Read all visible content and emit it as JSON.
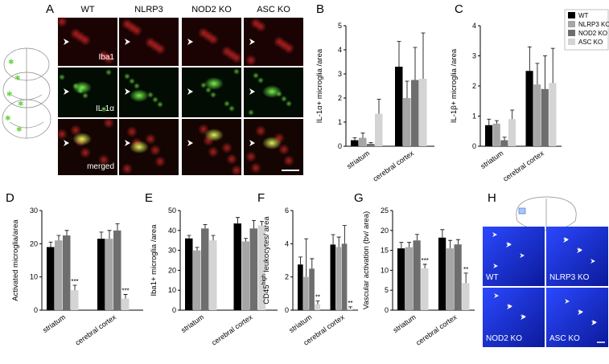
{
  "panel_a": {
    "label": "A",
    "columns": [
      "WT",
      "NLRP3",
      "NOD2 KO",
      "ASC KO"
    ],
    "rows": [
      "Iba1",
      "IL-1α",
      "merged"
    ]
  },
  "legend": {
    "items": [
      {
        "name": "WT",
        "color": "#000000"
      },
      {
        "name": "NLRP3 KO",
        "color": "#a6a6a6"
      },
      {
        "name": "NOD2 KO",
        "color": "#6e6e6e"
      },
      {
        "name": "ASC KO",
        "color": "#d4d4d4"
      }
    ]
  },
  "chart_data": [
    {
      "type": "bar",
      "label": "B",
      "ylabel": "IL-1α+ microglia /area",
      "categories": [
        "striatum",
        "cerebral cortex"
      ],
      "ylim": [
        0,
        5
      ],
      "yticks": [
        0,
        1,
        2,
        3,
        4,
        5
      ],
      "series": [
        {
          "color": "#000000",
          "values": [
            0.25,
            3.3
          ],
          "errors": [
            0.1,
            1.05
          ]
        },
        {
          "color": "#a6a6a6",
          "values": [
            0.35,
            2.0
          ],
          "errors": [
            0.2,
            0.7
          ]
        },
        {
          "color": "#6e6e6e",
          "values": [
            0.1,
            2.75
          ],
          "errors": [
            0.05,
            1.35
          ]
        },
        {
          "color": "#d4d4d4",
          "values": [
            1.35,
            2.8
          ],
          "errors": [
            0.6,
            1.9
          ]
        }
      ]
    },
    {
      "type": "bar",
      "label": "C",
      "ylabel": "IL-1β+ microglia /area",
      "categories": [
        "striatum",
        "cerebral cortex"
      ],
      "ylim": [
        0,
        4
      ],
      "yticks": [
        0,
        1,
        2,
        3,
        4
      ],
      "series": [
        {
          "color": "#000000",
          "values": [
            0.7,
            2.5
          ],
          "errors": [
            0.2,
            0.8
          ]
        },
        {
          "color": "#a6a6a6",
          "values": [
            0.75,
            2.05
          ],
          "errors": [
            0.1,
            0.7
          ]
        },
        {
          "color": "#6e6e6e",
          "values": [
            0.2,
            1.9
          ],
          "errors": [
            0.1,
            1.1
          ]
        },
        {
          "color": "#d4d4d4",
          "values": [
            0.9,
            2.1
          ],
          "errors": [
            0.3,
            1.15
          ]
        }
      ]
    },
    {
      "type": "bar",
      "label": "D",
      "ylabel": "Activated microglia/area",
      "categories": [
        "striatum",
        "cerebral cortex"
      ],
      "ylim": [
        0,
        30
      ],
      "yticks": [
        0,
        10,
        20,
        30
      ],
      "series": [
        {
          "color": "#000000",
          "values": [
            19,
            21.5
          ],
          "errors": [
            1.5,
            2
          ]
        },
        {
          "color": "#a6a6a6",
          "values": [
            21,
            21.5
          ],
          "errors": [
            1.5,
            2.5
          ]
        },
        {
          "color": "#6e6e6e",
          "values": [
            22.5,
            24
          ],
          "errors": [
            1.5,
            2
          ]
        },
        {
          "color": "#d4d4d4",
          "values": [
            6,
            3.5
          ],
          "errors": [
            1.5,
            1.2
          ],
          "value_annotations": [
            "***",
            "***"
          ]
        }
      ]
    },
    {
      "type": "bar",
      "label": "E",
      "ylabel": "Iba1+ microglia /area",
      "categories": [
        "striatum",
        "cerebral cortex"
      ],
      "ylim": [
        0,
        50
      ],
      "yticks": [
        0,
        10,
        20,
        30,
        40,
        50
      ],
      "series": [
        {
          "color": "#000000",
          "values": [
            36,
            43.5
          ],
          "errors": [
            1.5,
            3
          ]
        },
        {
          "color": "#a6a6a6",
          "values": [
            30,
            34.5
          ],
          "errors": [
            1.5,
            1.5
          ]
        },
        {
          "color": "#6e6e6e",
          "values": [
            41,
            41
          ],
          "errors": [
            2,
            4
          ]
        },
        {
          "color": "#d4d4d4",
          "values": [
            35,
            42.5
          ],
          "errors": [
            2.5,
            2
          ]
        }
      ]
    },
    {
      "type": "bar",
      "label": "F",
      "ylabel": "CD45",
      "ylabel_sup": "high",
      "ylabel_rest": " leukocytes/ area",
      "categories": [
        "striatum",
        "cerebral cortex"
      ],
      "ylim": [
        0,
        6
      ],
      "yticks": [
        0,
        2,
        4,
        6
      ],
      "series": [
        {
          "color": "#000000",
          "values": [
            2.75,
            3.95
          ],
          "errors": [
            0.45,
            0.6
          ]
        },
        {
          "color": "#a6a6a6",
          "values": [
            2.0,
            3.8
          ],
          "errors": [
            2.3,
            0.6
          ]
        },
        {
          "color": "#6e6e6e",
          "values": [
            2.5,
            4.0
          ],
          "errors": [
            0.6,
            1.1
          ]
        },
        {
          "color": "#d4d4d4",
          "values": [
            0.35,
            0.1
          ],
          "errors": [
            0.2,
            0.1
          ],
          "value_annotations": [
            "**",
            "**"
          ]
        }
      ]
    },
    {
      "type": "bar",
      "label": "G",
      "ylabel": "Vascular activation (bv/ area)",
      "categories": [
        "striatum",
        "cerebral cortex"
      ],
      "ylim": [
        0,
        25
      ],
      "yticks": [
        0,
        5,
        10,
        15,
        20,
        25
      ],
      "series": [
        {
          "color": "#000000",
          "values": [
            15.5,
            18.2
          ],
          "errors": [
            1.5,
            2
          ]
        },
        {
          "color": "#a6a6a6",
          "values": [
            15.8,
            15.5
          ],
          "errors": [
            1.2,
            2
          ]
        },
        {
          "color": "#6e6e6e",
          "values": [
            17.5,
            16.5
          ],
          "errors": [
            1.5,
            1.2
          ]
        },
        {
          "color": "#d4d4d4",
          "values": [
            10.5,
            6.8
          ],
          "errors": [
            1,
            2.5
          ],
          "value_annotations": [
            "***",
            "**"
          ]
        }
      ]
    }
  ],
  "panel_h": {
    "label": "H",
    "images": [
      "WT",
      "NLRP3 KO",
      "NOD2 KO",
      "ASC KO"
    ]
  }
}
